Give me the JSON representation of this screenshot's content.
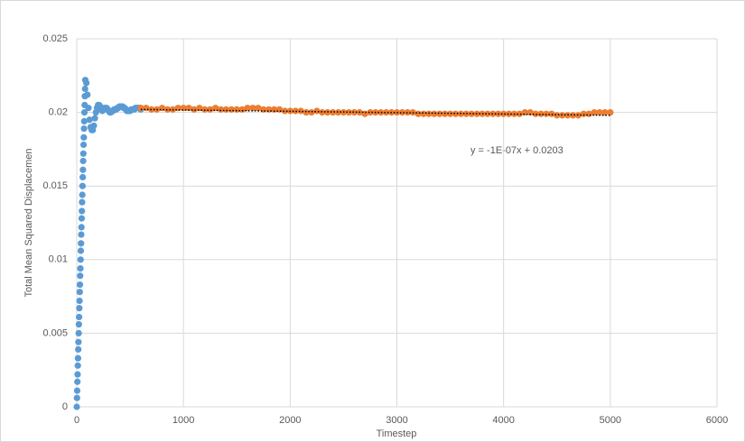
{
  "chart_data": {
    "type": "scatter",
    "xlabel": "Timestep",
    "ylabel": "Total Mean Squared Displacemen",
    "xlim": [
      0,
      6000
    ],
    "xticks": [
      0,
      1000,
      2000,
      3000,
      4000,
      5000,
      6000
    ],
    "ylim": [
      0,
      0.025
    ],
    "yticks": [
      0,
      0.005,
      0.01,
      0.015,
      0.02,
      0.025
    ],
    "grid": true,
    "series": [
      {
        "color": "#5b9bd5",
        "x": [
          0,
          2,
          4,
          6,
          8,
          10,
          12,
          14,
          16,
          18,
          20,
          22,
          24,
          26,
          28,
          30,
          32,
          34,
          36,
          38,
          40,
          42,
          44,
          46,
          48,
          50,
          52,
          54,
          56,
          58,
          60,
          62,
          64,
          66,
          68,
          70,
          72,
          74,
          76,
          78,
          80,
          90,
          100,
          110,
          120,
          130,
          140,
          150,
          160,
          170,
          180,
          190,
          200,
          210,
          220,
          230,
          240,
          250,
          260,
          270,
          280,
          290,
          300,
          310,
          320,
          330,
          340,
          350,
          360,
          370,
          380,
          390,
          400,
          410,
          420,
          430,
          440,
          450,
          460,
          470,
          480,
          490,
          500,
          510,
          520,
          530,
          540,
          550,
          560,
          570,
          580,
          590,
          600
        ],
        "values": [
          0,
          0.0006,
          0.0011,
          0.0017,
          0.0022,
          0.0028,
          0.0033,
          0.0039,
          0.0044,
          0.005,
          0.0056,
          0.0061,
          0.0067,
          0.0072,
          0.0078,
          0.0083,
          0.0089,
          0.0094,
          0.01,
          0.0106,
          0.0111,
          0.0117,
          0.0122,
          0.0128,
          0.0133,
          0.0139,
          0.0144,
          0.015,
          0.0156,
          0.0161,
          0.0167,
          0.0172,
          0.0178,
          0.0183,
          0.0189,
          0.0194,
          0.02,
          0.0205,
          0.0211,
          0.0216,
          0.0222,
          0.022,
          0.0212,
          0.0203,
          0.0195,
          0.019,
          0.0188,
          0.0188,
          0.0191,
          0.0196,
          0.02,
          0.0203,
          0.0205,
          0.0205,
          0.0204,
          0.0202,
          0.0201,
          0.0202,
          0.0203,
          0.0203,
          0.0203,
          0.0202,
          0.0201,
          0.02,
          0.02,
          0.0201,
          0.0201,
          0.0202,
          0.0202,
          0.0202,
          0.0203,
          0.0203,
          0.0204,
          0.0204,
          0.0204,
          0.0204,
          0.0203,
          0.0203,
          0.0202,
          0.0201,
          0.0201,
          0.0201,
          0.0201,
          0.0202,
          0.0202,
          0.0202,
          0.0202,
          0.0203,
          0.0203,
          0.0203,
          0.0203,
          0.0203,
          0.0202
        ]
      },
      {
        "color": "#ed7d31",
        "x": [
          600,
          650,
          700,
          750,
          800,
          850,
          900,
          950,
          1000,
          1050,
          1100,
          1150,
          1200,
          1250,
          1300,
          1350,
          1400,
          1450,
          1500,
          1550,
          1600,
          1650,
          1700,
          1750,
          1800,
          1850,
          1900,
          1950,
          2000,
          2050,
          2100,
          2150,
          2200,
          2250,
          2300,
          2350,
          2400,
          2450,
          2500,
          2550,
          2600,
          2650,
          2700,
          2750,
          2800,
          2850,
          2900,
          2950,
          3000,
          3050,
          3100,
          3150,
          3200,
          3250,
          3300,
          3350,
          3400,
          3450,
          3500,
          3550,
          3600,
          3650,
          3700,
          3750,
          3800,
          3850,
          3900,
          3950,
          4000,
          4050,
          4100,
          4150,
          4200,
          4250,
          4300,
          4350,
          4400,
          4450,
          4500,
          4550,
          4600,
          4650,
          4700,
          4750,
          4800,
          4850,
          4900,
          4950,
          5000
        ],
        "values": [
          0.0203,
          0.0203,
          0.0202,
          0.0202,
          0.0203,
          0.0202,
          0.0202,
          0.0203,
          0.0203,
          0.0203,
          0.0202,
          0.0203,
          0.0202,
          0.0202,
          0.0203,
          0.0202,
          0.0202,
          0.0202,
          0.0202,
          0.0202,
          0.0203,
          0.0203,
          0.0203,
          0.0202,
          0.0202,
          0.0202,
          0.0202,
          0.0201,
          0.0201,
          0.0201,
          0.0201,
          0.02,
          0.02,
          0.0201,
          0.02,
          0.02,
          0.02,
          0.02,
          0.02,
          0.02,
          0.02,
          0.02,
          0.0199,
          0.02,
          0.02,
          0.02,
          0.02,
          0.02,
          0.02,
          0.02,
          0.02,
          0.02,
          0.0199,
          0.0199,
          0.0199,
          0.0199,
          0.0199,
          0.0199,
          0.0199,
          0.0199,
          0.0199,
          0.0199,
          0.0199,
          0.0199,
          0.0199,
          0.0199,
          0.0199,
          0.0199,
          0.0199,
          0.0199,
          0.0199,
          0.0199,
          0.02,
          0.02,
          0.0199,
          0.0199,
          0.0199,
          0.0199,
          0.0198,
          0.0198,
          0.0198,
          0.0198,
          0.0198,
          0.0199,
          0.0199,
          0.02,
          0.02,
          0.02,
          0.02
        ]
      }
    ],
    "trendline": {
      "color": "#000000",
      "x": [
        600,
        5000
      ],
      "values": [
        0.0202,
        0.0198
      ]
    },
    "annotation": "y = -1E-07x + 0.0203"
  }
}
